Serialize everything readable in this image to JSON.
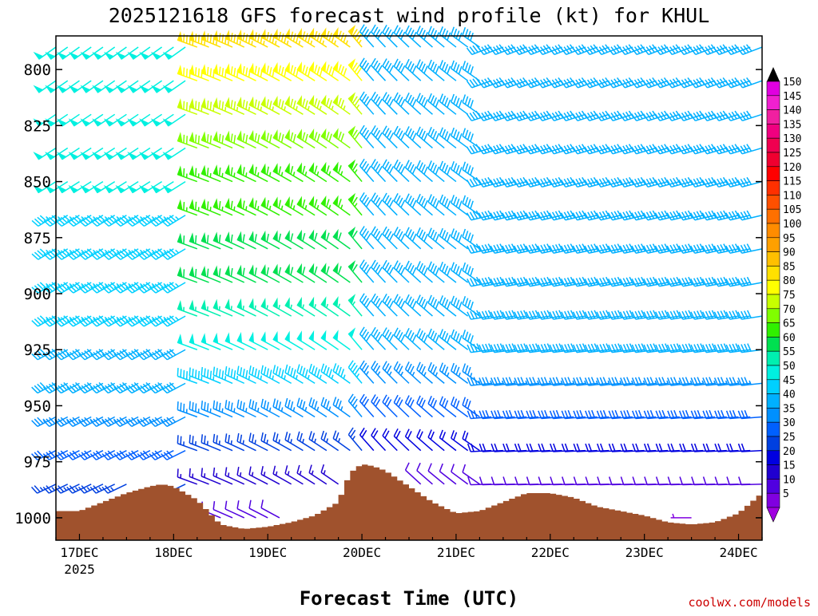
{
  "chart_data": {
    "type": "wind_barb_time_height",
    "title": "2025121618 GFS forecast wind profile (kt) for KHUL",
    "xlabel": "Forecast Time (UTC)",
    "ylabel": "",
    "credit": "coolwx.com/models",
    "x_ticks": [
      {
        "t": 6,
        "label": "17DEC",
        "sublabel": "2025"
      },
      {
        "t": 30,
        "label": "18DEC",
        "sublabel": ""
      },
      {
        "t": 54,
        "label": "19DEC",
        "sublabel": ""
      },
      {
        "t": 78,
        "label": "20DEC",
        "sublabel": ""
      },
      {
        "t": 102,
        "label": "21DEC",
        "sublabel": ""
      },
      {
        "t": 126,
        "label": "22DEC",
        "sublabel": ""
      },
      {
        "t": 150,
        "label": "23DEC",
        "sublabel": ""
      },
      {
        "t": 174,
        "label": "24DEC",
        "sublabel": ""
      }
    ],
    "xlim_hours": [
      0,
      180
    ],
    "y_ticks": [
      800,
      825,
      850,
      875,
      900,
      925,
      950,
      975,
      1000
    ],
    "ylim_hpa": [
      1010,
      785
    ],
    "barb_levels_hpa": [
      790,
      805,
      820,
      835,
      850,
      865,
      880,
      895,
      910,
      925,
      940,
      955,
      970,
      985,
      1000
    ],
    "barb_times_hours": [
      0,
      3,
      6,
      9,
      12,
      15,
      18,
      21,
      24,
      27,
      30,
      33,
      36,
      39,
      42,
      45,
      48,
      51,
      54,
      57,
      60,
      63,
      66,
      69,
      72,
      75,
      78,
      81,
      84,
      87,
      90,
      93,
      96,
      99,
      102,
      105,
      108,
      111,
      114,
      117,
      120,
      123,
      126,
      129,
      132,
      135,
      138,
      141,
      144,
      147,
      150,
      153,
      156,
      159,
      162,
      165,
      168,
      171,
      174,
      177,
      180
    ],
    "wind_speed_kt_at_level_1000_to_790": {
      "note": "estimated representative speeds per level (bottom to top) for three regimes",
      "pre_frontal": [
        15,
        25,
        30,
        35,
        40,
        40,
        45,
        45,
        45,
        45,
        50,
        50,
        50,
        50,
        50
      ],
      "post_frontal": [
        10,
        15,
        25,
        35,
        45,
        50,
        55,
        60,
        60,
        65,
        65,
        70,
        75,
        80,
        85
      ],
      "late_period": [
        5,
        10,
        20,
        30,
        35,
        40,
        40,
        40,
        40,
        40,
        40,
        40,
        40,
        40,
        40
      ]
    },
    "terrain_pressure_hpa": {
      "t_hours": [
        0,
        6,
        12,
        18,
        24,
        27,
        30,
        36,
        42,
        48,
        54,
        60,
        66,
        72,
        75,
        78,
        81,
        84,
        90,
        96,
        102,
        108,
        114,
        120,
        126,
        132,
        138,
        144,
        150,
        156,
        162,
        168,
        174,
        180
      ],
      "values": [
        997,
        997,
        993,
        989,
        986,
        985,
        986,
        992,
        1003,
        1005,
        1004,
        1002,
        999,
        993,
        980,
        976,
        977,
        979,
        986,
        993,
        998,
        997,
        993,
        989,
        989,
        991,
        995,
        997,
        999,
        1002,
        1003,
        1002,
        998,
        989
      ]
    },
    "colorbar": {
      "labels": [
        "150",
        "145",
        "140",
        "135",
        "130",
        "125",
        "120",
        "115",
        "110",
        "105",
        "100",
        "95",
        "90",
        "85",
        "80",
        "75",
        "70",
        "65",
        "60",
        "55",
        "50",
        "45",
        "40",
        "35",
        "30",
        "25",
        "20",
        "15",
        "10",
        "5"
      ],
      "colors": [
        "#e000e0",
        "#f020d0",
        "#f020a0",
        "#f00080",
        "#f00050",
        "#f00030",
        "#ff0000",
        "#ff3000",
        "#ff5000",
        "#ff7000",
        "#ff8c00",
        "#ffa000",
        "#ffc000",
        "#ffe000",
        "#ffff00",
        "#c8ff00",
        "#80ff00",
        "#30f000",
        "#00e050",
        "#00f0b0",
        "#00f0e0",
        "#00d0ff",
        "#00b0ff",
        "#0090ff",
        "#0060ff",
        "#0040e0",
        "#0000e0",
        "#2000d0",
        "#5000e0",
        "#8000e0"
      ],
      "top_arrow_color": "#000000",
      "bottom_arrow_color": "#a000e0"
    },
    "terrain_color": "#a0522d"
  }
}
